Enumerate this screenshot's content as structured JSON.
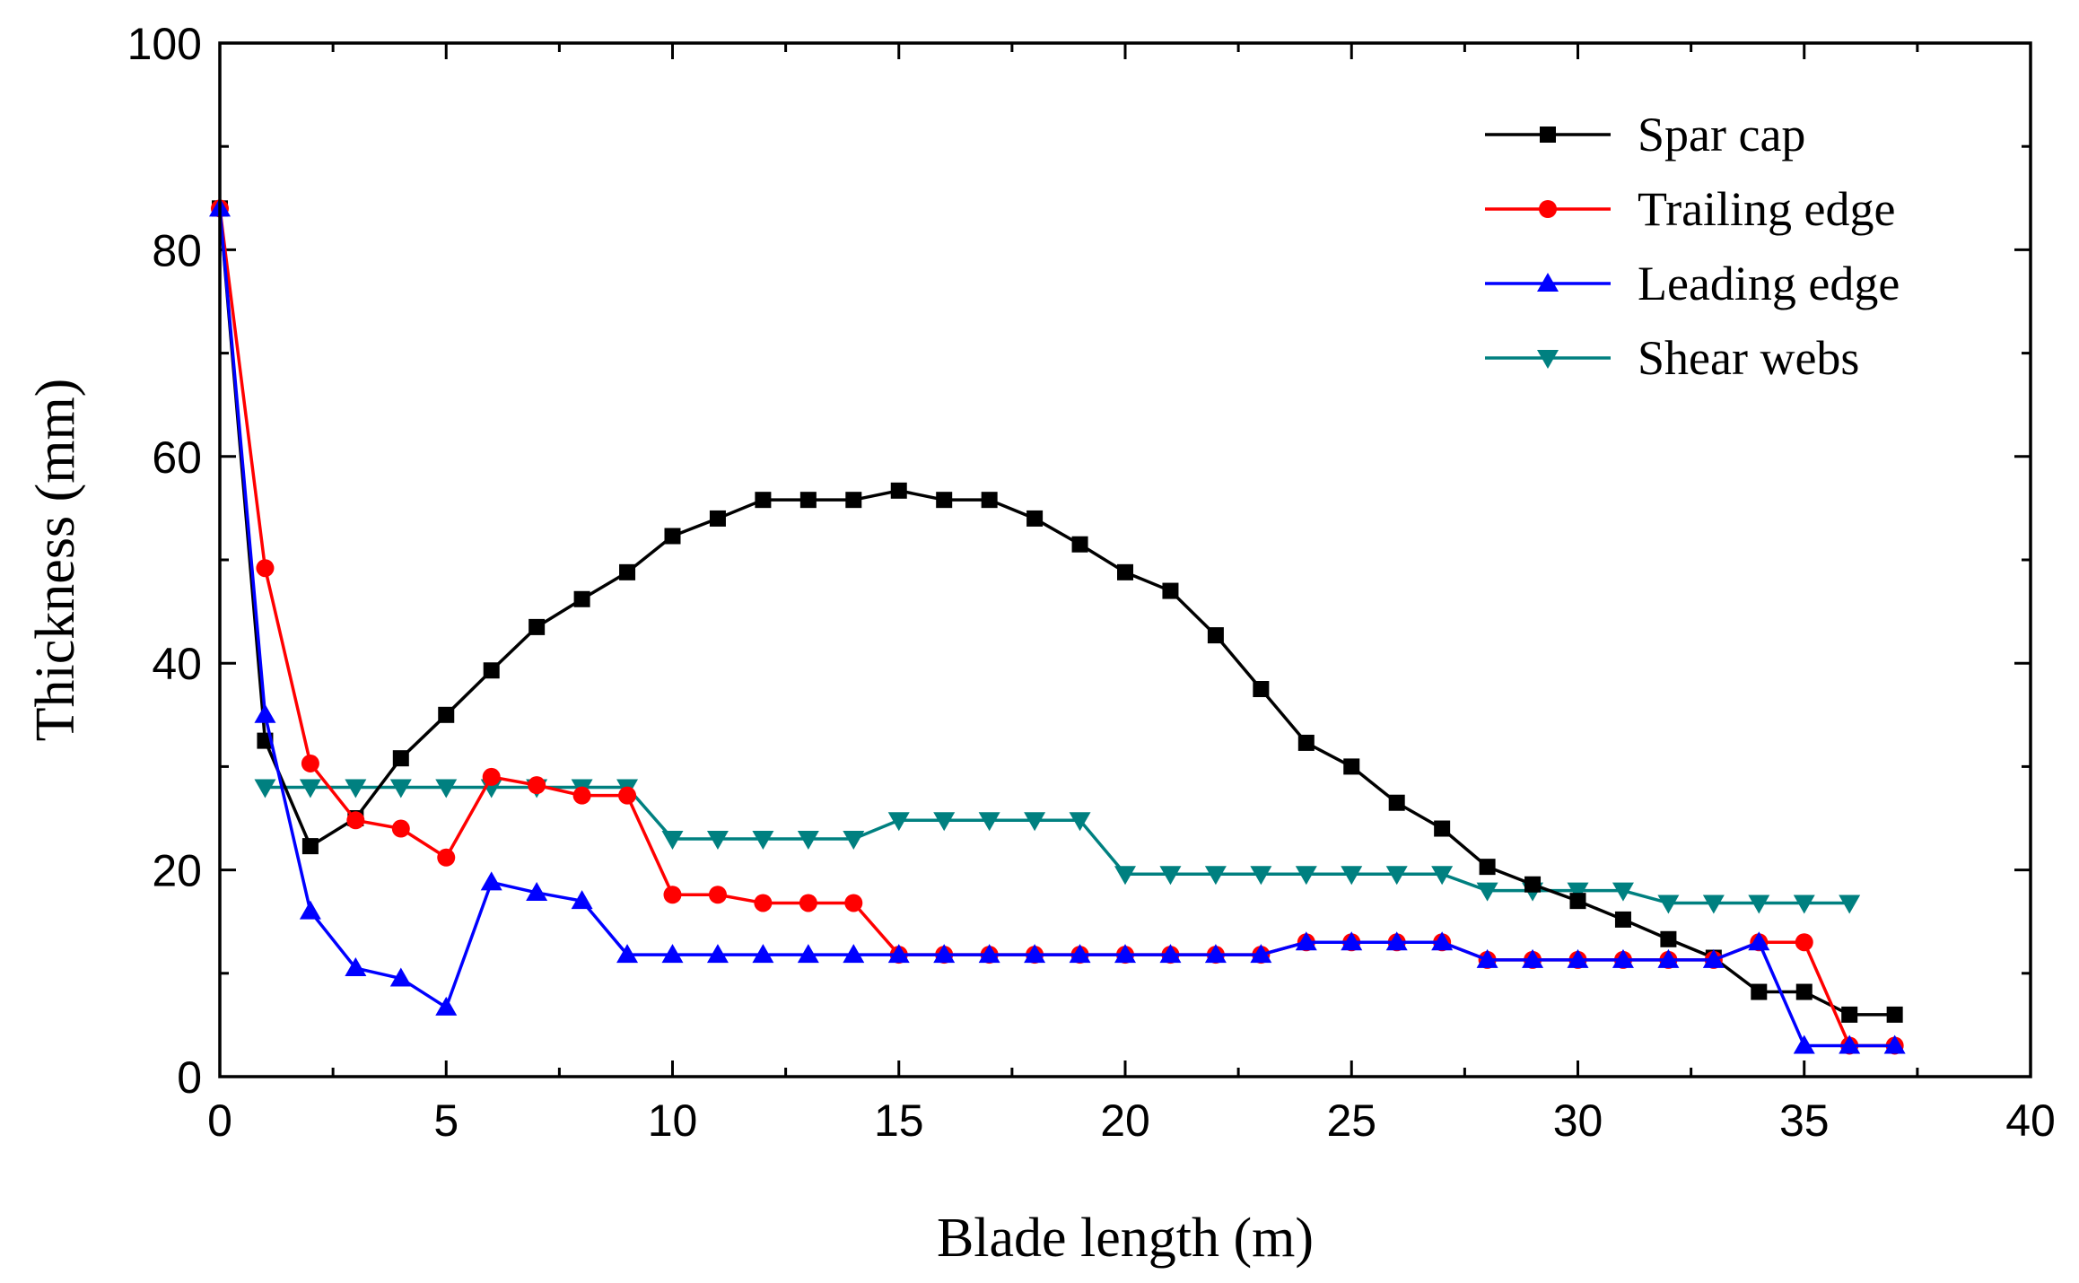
{
  "chart_data": {
    "type": "line",
    "title": "",
    "xlabel": "Blade length (m)",
    "ylabel": "Thickness (mm)",
    "xlim": [
      0,
      40
    ],
    "ylim": [
      0,
      100
    ],
    "xticks": [
      0,
      5,
      10,
      15,
      20,
      25,
      30,
      35,
      40
    ],
    "yticks": [
      0,
      20,
      40,
      60,
      80,
      100
    ],
    "grid": false,
    "legend_position": "top-right",
    "series": [
      {
        "name": "Spar cap",
        "color": "#000000",
        "marker": "square",
        "x": [
          0,
          1,
          2,
          3,
          4,
          5,
          6,
          7,
          8,
          9,
          10,
          11,
          12,
          13,
          14,
          15,
          16,
          17,
          18,
          19,
          20,
          21,
          22,
          23,
          24,
          25,
          26,
          27,
          28,
          29,
          30,
          31,
          32,
          33,
          34,
          35,
          36,
          37
        ],
        "y": [
          84,
          32.5,
          22.3,
          25,
          30.8,
          35,
          39.3,
          43.5,
          46.2,
          48.8,
          52.3,
          54,
          55.8,
          55.8,
          55.8,
          56.7,
          55.8,
          55.8,
          54,
          51.5,
          48.8,
          47,
          42.7,
          37.5,
          32.3,
          30,
          26.5,
          24,
          20.3,
          18.6,
          17,
          15.2,
          13.3,
          11.5,
          8.2,
          8.2,
          6,
          6
        ]
      },
      {
        "name": "Trailing edge",
        "color": "#ff0000",
        "marker": "circle",
        "x": [
          0,
          1,
          2,
          3,
          4,
          5,
          6,
          7,
          8,
          9,
          10,
          11,
          12,
          13,
          14,
          15,
          16,
          17,
          18,
          19,
          20,
          21,
          22,
          23,
          24,
          25,
          26,
          27,
          28,
          29,
          30,
          31,
          32,
          33,
          34,
          35,
          36,
          37
        ],
        "y": [
          84,
          49.2,
          30.3,
          24.8,
          24,
          21.2,
          29,
          28.2,
          27.2,
          27.2,
          17.6,
          17.6,
          16.8,
          16.8,
          16.8,
          11.8,
          11.8,
          11.8,
          11.8,
          11.8,
          11.8,
          11.8,
          11.8,
          11.8,
          13,
          13,
          13,
          13,
          11.3,
          11.3,
          11.3,
          11.3,
          11.3,
          11.3,
          13,
          13,
          3,
          3
        ]
      },
      {
        "name": "Leading edge",
        "color": "#0000ff",
        "marker": "triangle-up",
        "x": [
          0,
          1,
          2,
          3,
          4,
          5,
          6,
          7,
          8,
          9,
          10,
          11,
          12,
          13,
          14,
          15,
          16,
          17,
          18,
          19,
          20,
          21,
          22,
          23,
          24,
          25,
          26,
          27,
          28,
          29,
          30,
          31,
          32,
          33,
          34,
          35,
          36,
          37
        ],
        "y": [
          84,
          35,
          16,
          10.5,
          9.5,
          6.7,
          18.8,
          17.8,
          17,
          11.8,
          11.8,
          11.8,
          11.8,
          11.8,
          11.8,
          11.8,
          11.8,
          11.8,
          11.8,
          11.8,
          11.8,
          11.8,
          11.8,
          11.8,
          13,
          13,
          13,
          13,
          11.3,
          11.3,
          11.3,
          11.3,
          11.3,
          11.3,
          13,
          3,
          3,
          3
        ]
      },
      {
        "name": "Shear webs",
        "color": "#008080",
        "marker": "triangle-down",
        "x": [
          1,
          2,
          3,
          4,
          5,
          6,
          7,
          8,
          9,
          10,
          11,
          12,
          13,
          14,
          15,
          16,
          17,
          18,
          19,
          20,
          21,
          22,
          23,
          24,
          25,
          26,
          27,
          28,
          29,
          30,
          31,
          32,
          33,
          34,
          35,
          36
        ],
        "y": [
          28,
          28,
          28,
          28,
          28,
          28,
          28,
          28,
          28,
          23,
          23,
          23,
          23,
          23,
          24.8,
          24.8,
          24.8,
          24.8,
          24.8,
          19.6,
          19.6,
          19.6,
          19.6,
          19.6,
          19.6,
          19.6,
          19.6,
          18,
          18,
          18,
          18,
          16.8,
          16.8,
          16.8,
          16.8,
          16.8
        ]
      }
    ]
  }
}
